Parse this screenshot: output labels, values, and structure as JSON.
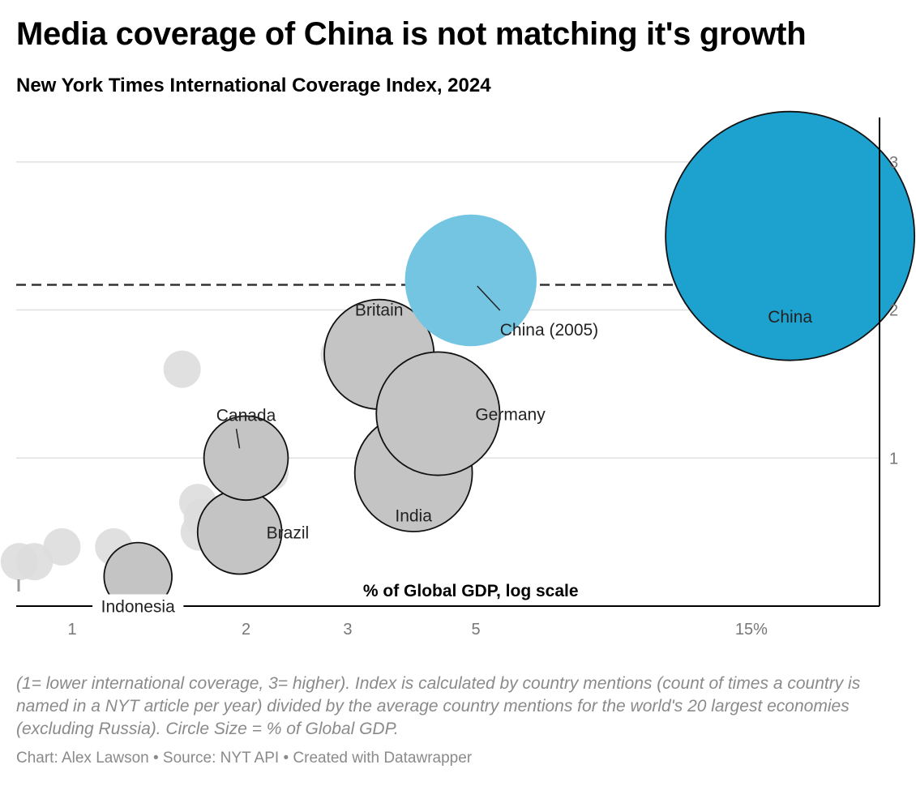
{
  "header": {
    "title": "Media coverage of China is not matching it's growth",
    "subtitle": "New York Times International Coverage Index, 2024"
  },
  "notes": "(1= lower international coverage, 3= higher). Index is calculated by country mentions (count of times a country is named in a NYT article per year) divided by the average country mentions for the world's 20 largest economies (excluding Russia). Circle Size = % of Global GDP.",
  "byline": {
    "chart": "Chart: Alex Lawson",
    "source": " • Source: NYT API",
    "created": " • Created with Datawrapper"
  },
  "colors": {
    "china": "#1da1cf",
    "china_2005": "#74c5e2",
    "highlight": "#c4c4c4",
    "background_points": "#dddddd",
    "gridline": "#e0e0e0",
    "axis": "#000000",
    "reference_line": "#333333",
    "tick_text": "#777777"
  },
  "chart_data": {
    "type": "scatter",
    "xlabel": "% of Global GDP, log scale",
    "ylabel": "",
    "x_scale": "log",
    "xlim": [
      0.8,
      25
    ],
    "ylim": [
      0,
      3.3
    ],
    "x_ticks": [
      {
        "value": 1,
        "label": "1"
      },
      {
        "value": 2,
        "label": "2"
      },
      {
        "value": 3,
        "label": "3"
      },
      {
        "value": 5,
        "label": "5"
      },
      {
        "value": 15,
        "label": "15%"
      }
    ],
    "y_ticks": [
      {
        "value": 1,
        "label": "1"
      },
      {
        "value": 2,
        "label": "2"
      },
      {
        "value": 3,
        "label": "3"
      }
    ],
    "y_axis_side": "right",
    "grid": "horizontal",
    "reference_line": {
      "y": 2.17,
      "style": "dashed"
    },
    "series": [
      {
        "name": "",
        "group": "background",
        "points": [
          {
            "x": 0.81,
            "y": 0.3
          },
          {
            "x": 0.86,
            "y": 0.3
          },
          {
            "x": 0.96,
            "y": 0.4
          },
          {
            "x": 1.18,
            "y": 0.4
          },
          {
            "x": 1.55,
            "y": 1.6
          },
          {
            "x": 1.65,
            "y": 0.7
          },
          {
            "x": 1.68,
            "y": 0.6
          },
          {
            "x": 1.66,
            "y": 0.5
          },
          {
            "x": 2.2,
            "y": 0.9
          },
          {
            "x": 2.9,
            "y": 1.7
          },
          {
            "x": 3.6,
            "y": 1.1
          }
        ]
      },
      {
        "name": "",
        "group": "highlighted",
        "points": [
          {
            "label": "Indonesia",
            "x": 1.3,
            "y": 0.2,
            "gdp": 1.3
          },
          {
            "label": "Brazil",
            "x": 1.95,
            "y": 0.5,
            "gdp": 2.0
          },
          {
            "label": "Canada",
            "x": 2.0,
            "y": 1.0,
            "gdp": 2.0
          },
          {
            "label": "India",
            "x": 3.9,
            "y": 0.9,
            "gdp": 3.9
          },
          {
            "label": "Britain",
            "x": 3.4,
            "y": 1.7,
            "gdp": 3.4
          },
          {
            "label": "Germany",
            "x": 4.3,
            "y": 1.3,
            "gdp": 4.3
          },
          {
            "label": "China (2005)",
            "x": 4.9,
            "y": 2.2,
            "gdp": 4.9
          },
          {
            "label": "China",
            "x": 17.5,
            "y": 2.5,
            "gdp": 17.5
          }
        ]
      }
    ]
  }
}
